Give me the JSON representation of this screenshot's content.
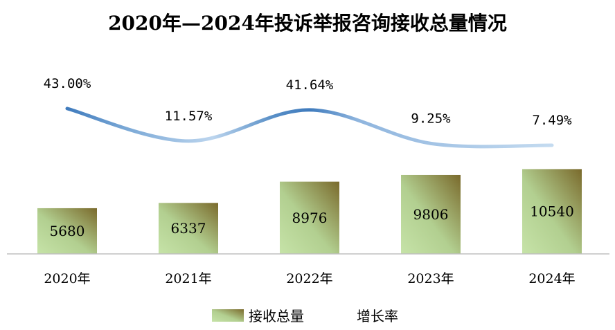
{
  "chart_data": {
    "type": "bar",
    "title": "2020年—2024年投诉举报咨询接收总量情况",
    "categories": [
      "2020年",
      "2021年",
      "2022年",
      "2023年",
      "2024年"
    ],
    "series": [
      {
        "name": "接收总量",
        "type": "bar",
        "values": [
          5680,
          6337,
          8976,
          9806,
          10540
        ],
        "labels": [
          "5680",
          "6337",
          "8976",
          "9806",
          "10540"
        ]
      },
      {
        "name": "增长率",
        "type": "line",
        "smooth": true,
        "values": [
          43.0,
          11.57,
          41.64,
          9.25,
          7.49
        ],
        "labels": [
          "43.00%",
          "11.57%",
          "41.64%",
          "9.25%",
          "7.49%"
        ],
        "unit": "%"
      }
    ],
    "legend_position": "bottom",
    "grid": false,
    "colors": {
      "bar_light": "#c3e0a5",
      "bar_dark": "#7a6a2c",
      "line_dark": "#3f7bbd",
      "line_light": "#bcd5ee",
      "axis": "#bfbfbf"
    }
  }
}
